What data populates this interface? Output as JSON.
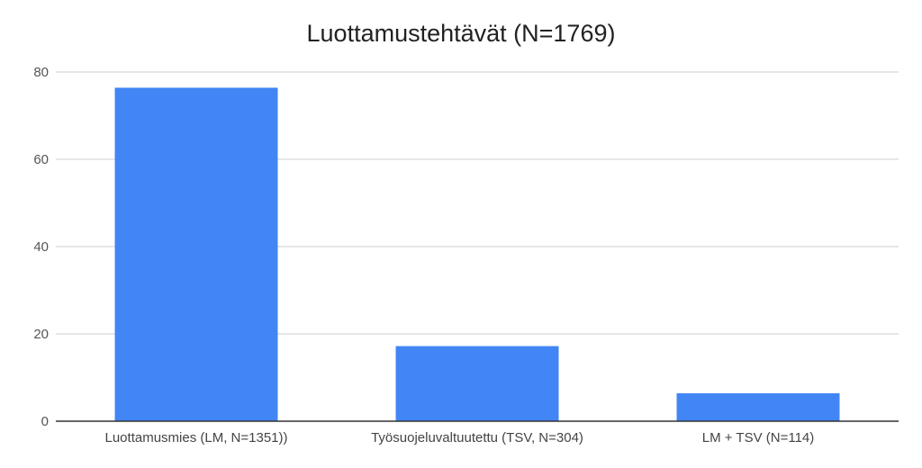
{
  "chart_data": {
    "type": "bar",
    "title": "Luottamustehtävät (N=1769)",
    "xlabel": "",
    "ylabel": "",
    "categories": [
      "Luottamusmies (LM, N=1351))",
      "Työsuojeluvaltuutettu (TSV, N=304)",
      "LM + TSV (N=114)"
    ],
    "values": [
      76.4,
      17.2,
      6.4
    ],
    "ylim": [
      0,
      80
    ],
    "yticks": [
      0,
      20,
      40,
      60,
      80
    ],
    "grid": true,
    "legend": "none",
    "bar_color": "#4285f4",
    "grid_color": "#cccccc",
    "axis_color": "#333333"
  }
}
